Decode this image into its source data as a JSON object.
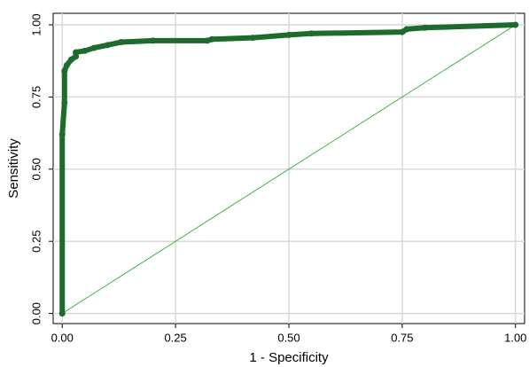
{
  "chart_data": {
    "type": "line",
    "xlabel": "1 - Specificity",
    "ylabel": "Sensitivity",
    "xlim": [
      -0.02,
      1.02
    ],
    "ylim": [
      -0.035,
      1.04
    ],
    "xticks": [
      {
        "value": 0,
        "label": "0.00"
      },
      {
        "value": 0.25,
        "label": "0.25"
      },
      {
        "value": 0.5,
        "label": "0.50"
      },
      {
        "value": 0.75,
        "label": "0.75"
      },
      {
        "value": 1,
        "label": "1.00"
      }
    ],
    "yticks": [
      {
        "value": 0,
        "label": "0.00"
      },
      {
        "value": 0.25,
        "label": "0.25"
      },
      {
        "value": 0.5,
        "label": "0.50"
      },
      {
        "value": 0.75,
        "label": "0.75"
      },
      {
        "value": 1,
        "label": "1.00"
      }
    ],
    "grid": true,
    "series": [
      {
        "color": "#1e6b2e",
        "markers": true,
        "x": [
          0,
          0,
          0.005,
          0.005,
          0.01,
          0.02,
          0.03,
          0.03,
          0.05,
          0.07,
          0.1,
          0.13,
          0.2,
          0.32,
          0.33,
          0.42,
          0.5,
          0.55,
          0.75,
          0.76,
          0.8,
          1
        ],
        "values": [
          0,
          0.62,
          0.73,
          0.84,
          0.86,
          0.88,
          0.89,
          0.905,
          0.91,
          0.92,
          0.93,
          0.94,
          0.945,
          0.945,
          0.95,
          0.955,
          0.965,
          0.97,
          0.975,
          0.985,
          0.99,
          1
        ]
      },
      {
        "color": "#3cb84a",
        "markers": false,
        "x": [
          0,
          1
        ],
        "values": [
          0,
          1
        ]
      }
    ]
  }
}
